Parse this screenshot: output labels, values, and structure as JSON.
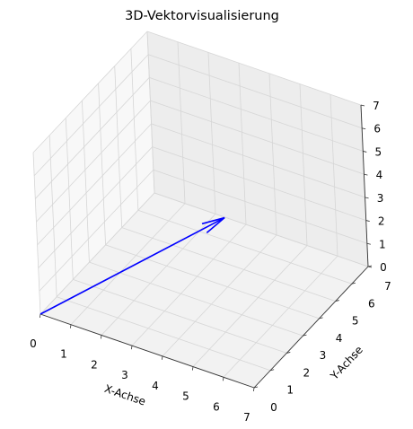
{
  "chart_data": {
    "type": "3d-vector",
    "title": "3D-Vektorvisualisierung",
    "xlabel": "X-Achse",
    "ylabel": "Y-Achse",
    "zlabel": "",
    "xlim": [
      0,
      7
    ],
    "ylim": [
      0,
      7
    ],
    "zlim": [
      0,
      7
    ],
    "xticks": [
      "0",
      "1",
      "2",
      "3",
      "4",
      "5",
      "6",
      "7"
    ],
    "yticks": [
      "0",
      "1",
      "2",
      "3",
      "4",
      "5",
      "6",
      "7"
    ],
    "zticks": [
      "0",
      "1",
      "2",
      "3",
      "4",
      "5",
      "6",
      "7"
    ],
    "grid": true,
    "vectors": [
      {
        "origin": [
          0,
          0,
          0
        ],
        "components": [
          4,
          4,
          3
        ],
        "color": "#0000ff"
      }
    ]
  }
}
